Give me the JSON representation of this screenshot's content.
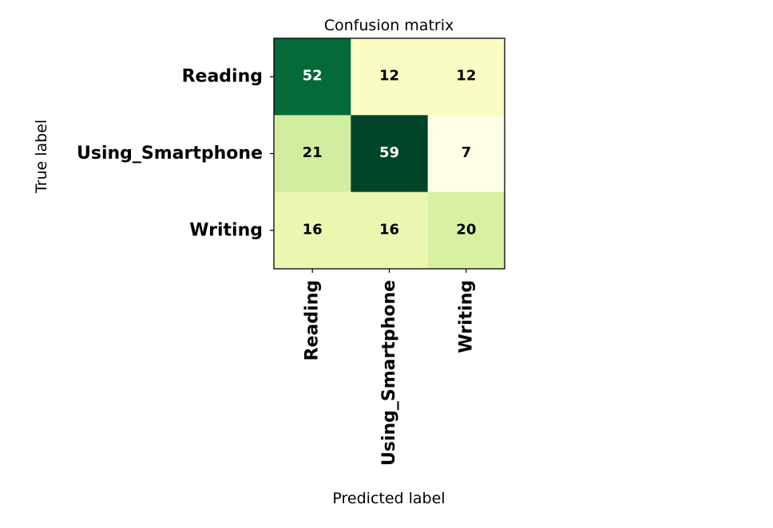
{
  "chart_data": {
    "type": "heatmap",
    "title": "Confusion matrix",
    "xlabel": "Predicted label",
    "ylabel": "True label",
    "x_categories": [
      "Reading",
      "Using_Smartphone",
      "Writing"
    ],
    "y_categories": [
      "Reading",
      "Using_Smartphone",
      "Writing"
    ],
    "values": [
      [
        52,
        12,
        12
      ],
      [
        21,
        59,
        7
      ],
      [
        16,
        16,
        20
      ]
    ],
    "colormap": "YlGn",
    "color_range": [
      7,
      59
    ],
    "colorbar": false,
    "grid": false
  }
}
